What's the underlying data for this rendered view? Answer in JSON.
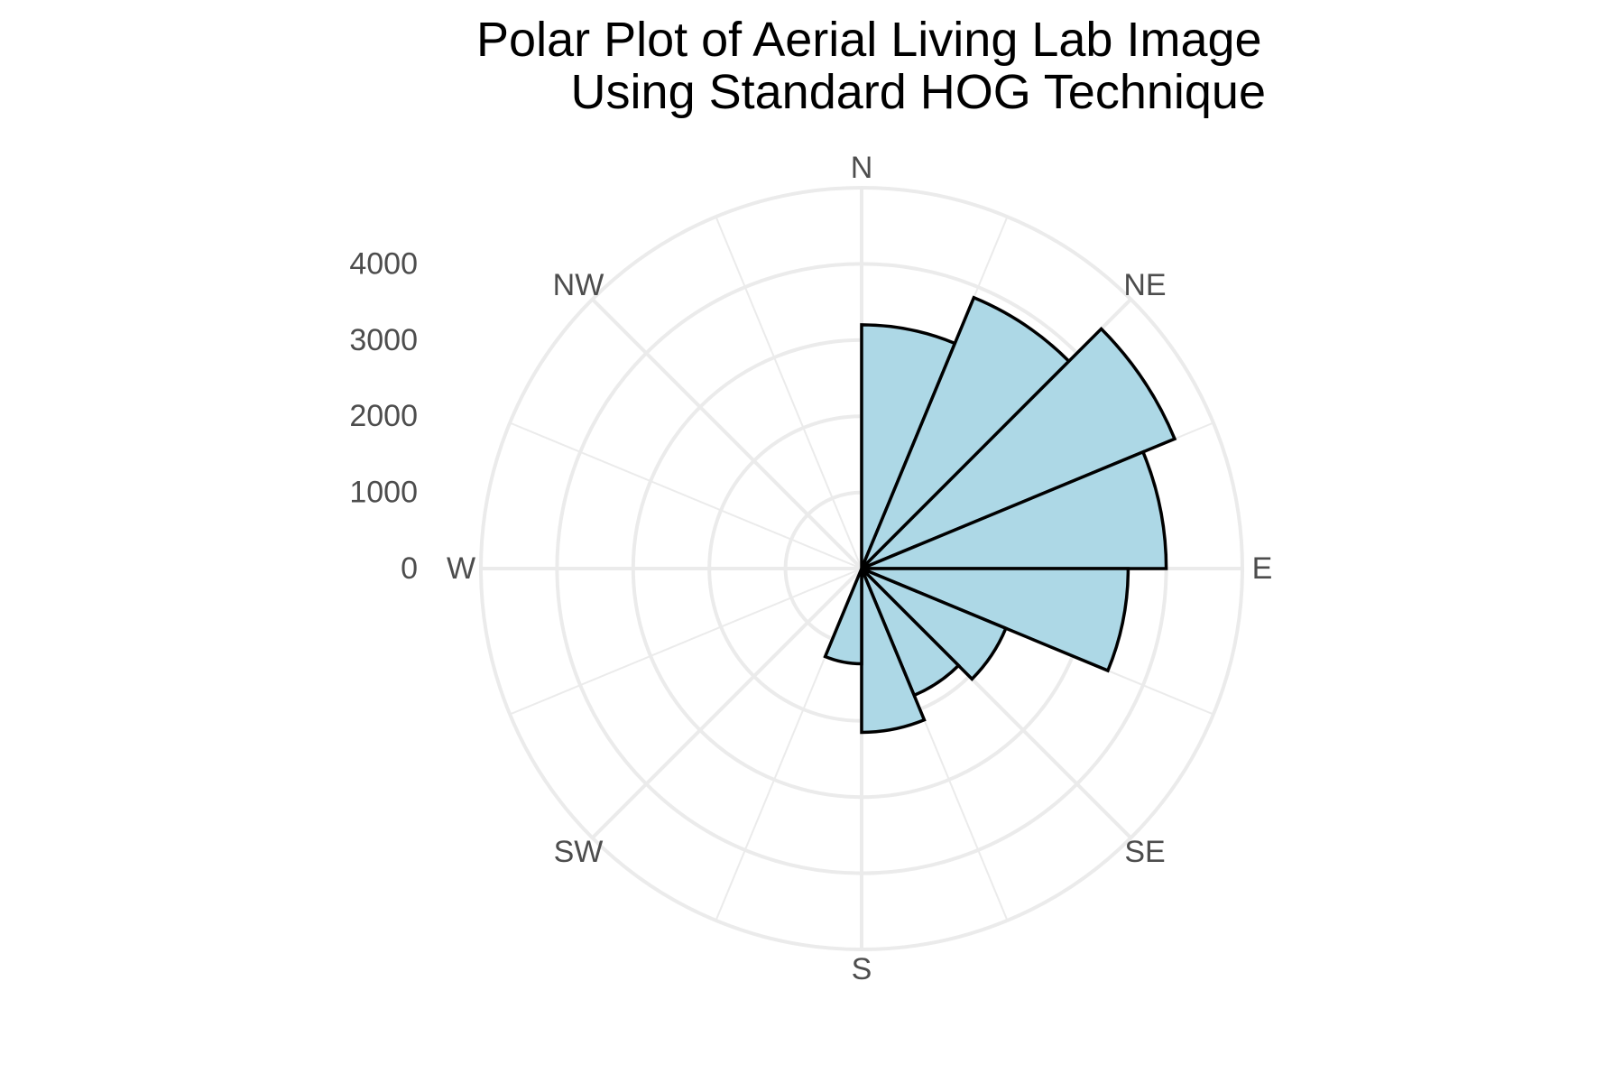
{
  "chart_data": {
    "type": "bar",
    "projection": "polar",
    "title": [
      "Polar Plot of Aerial Living Lab Image",
      "Using Standard HOG Technique"
    ],
    "direction_labels": [
      "N",
      "NE",
      "E",
      "SE",
      "S",
      "SW",
      "W",
      "NW"
    ],
    "radial_ticks": [
      "0",
      "1000",
      "2000",
      "3000",
      "4000"
    ],
    "rlim": [
      0,
      5000
    ],
    "grid": true,
    "bin_width_deg": 22.5,
    "bins": [
      {
        "start_deg": 0,
        "value": 3200
      },
      {
        "start_deg": 22.5,
        "value": 3850
      },
      {
        "start_deg": 45,
        "value": 4450
      },
      {
        "start_deg": 67.5,
        "value": 4000
      },
      {
        "start_deg": 90,
        "value": 3500
      },
      {
        "start_deg": 112.5,
        "value": 2050
      },
      {
        "start_deg": 135,
        "value": 1800
      },
      {
        "start_deg": 157.5,
        "value": 2150
      },
      {
        "start_deg": 180,
        "value": 1250
      }
    ],
    "fill_color": "#add8e6",
    "edge_color": "#000000",
    "grid_color": "#ebebeb"
  }
}
